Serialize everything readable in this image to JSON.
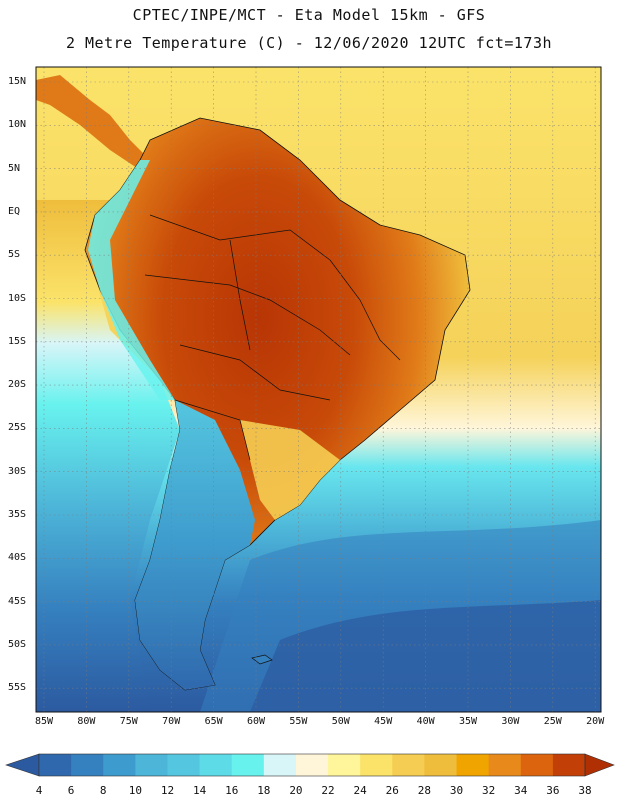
{
  "title_line1": "CPTEC/INPE/MCT -  Eta Model 15km - GFS",
  "title_line2": "2 Metre Temperature (C) - 12/06/2020 12UTC fct=173h",
  "lat_labels": [
    "15N",
    "10N",
    "5N",
    "EQ",
    "5S",
    "10S",
    "15S",
    "20S",
    "25S",
    "30S",
    "35S",
    "40S",
    "45S",
    "50S",
    "55S"
  ],
  "lon_labels": [
    "85W",
    "80W",
    "75W",
    "70W",
    "65W",
    "60W",
    "55W",
    "50W",
    "45W",
    "40W",
    "35W",
    "30W",
    "25W",
    "20W"
  ],
  "colorbar": {
    "labels": [
      "4",
      "6",
      "8",
      "10",
      "12",
      "14",
      "16",
      "18",
      "20",
      "22",
      "24",
      "26",
      "28",
      "30",
      "32",
      "34",
      "36",
      "38"
    ],
    "colors": [
      "#2f68ad",
      "#3580bf",
      "#3e9bcd",
      "#4db5d8",
      "#55c6df",
      "#5ddce8",
      "#68f2ee",
      "#d8f5f8",
      "#fff6da",
      "#fff59b",
      "#fbe36a",
      "#f5cd52",
      "#efbd3c",
      "#f0a400",
      "#e88a1b",
      "#dd640e",
      "#c23f08"
    ],
    "low_color": "#2c5aa0",
    "high_color": "#b03004"
  }
}
